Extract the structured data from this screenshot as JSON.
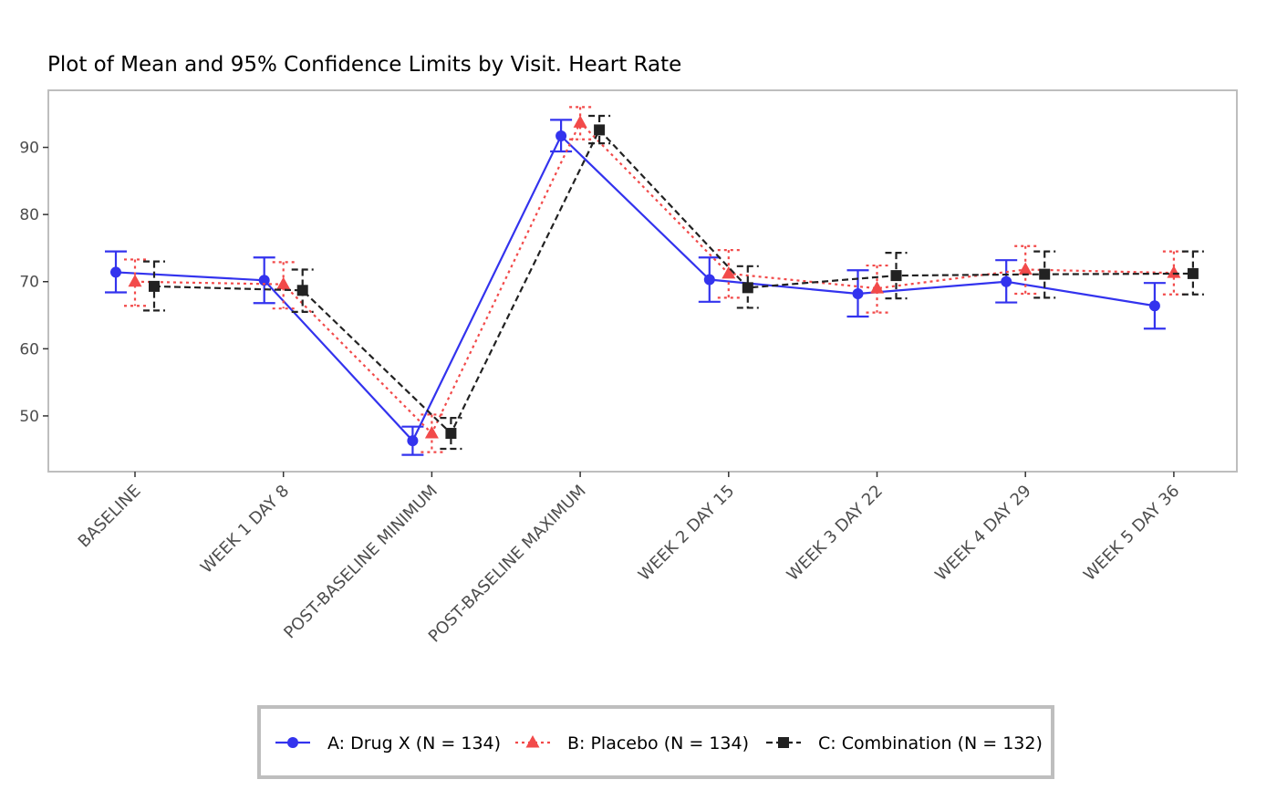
{
  "chart_data": {
    "type": "line",
    "title": "Plot of Mean and 95% Confidence Limits by Visit. Heart Rate",
    "xlabel": "",
    "ylabel": "",
    "ylim": [
      41.7,
      98.5
    ],
    "yticks": [
      50,
      60,
      70,
      80,
      90
    ],
    "grid": false,
    "legend_position": "bottom",
    "categories": [
      "BASELINE",
      "WEEK 1 DAY 8",
      "POST-BASELINE MINIMUM",
      "POST-BASELINE MAXIMUM",
      "WEEK 2 DAY 15",
      "WEEK 3 DAY 22",
      "WEEK 4 DAY 29",
      "WEEK 5 DAY 36"
    ],
    "series": [
      {
        "name": "A: Drug X (N = 134)",
        "color": "#3333ee",
        "line_style": "solid",
        "marker": "circle",
        "values": [
          71.4,
          70.2,
          46.3,
          91.7,
          70.3,
          68.2,
          70.0,
          66.4
        ],
        "ci_lower": [
          68.4,
          66.8,
          44.2,
          89.4,
          67.0,
          64.8,
          66.9,
          63.0
        ],
        "ci_upper": [
          74.5,
          73.6,
          48.4,
          94.1,
          73.6,
          71.7,
          73.2,
          69.8
        ]
      },
      {
        "name": "B: Placebo (N = 134)",
        "color": "#f24a4a",
        "line_style": "dotted",
        "marker": "triangle",
        "values": [
          70.0,
          69.6,
          47.4,
          93.7,
          71.2,
          69.0,
          71.8,
          71.3
        ],
        "ci_lower": [
          66.4,
          66.0,
          44.6,
          91.2,
          67.6,
          65.4,
          68.2,
          68.1
        ],
        "ci_upper": [
          73.3,
          72.9,
          50.2,
          96.0,
          74.7,
          72.4,
          75.3,
          74.5
        ]
      },
      {
        "name": "C: Combination (N = 132)",
        "color": "#222222",
        "line_style": "dashed",
        "marker": "square",
        "values": [
          69.3,
          68.7,
          47.4,
          92.6,
          69.1,
          70.9,
          71.1,
          71.2
        ],
        "ci_lower": [
          65.7,
          65.5,
          45.1,
          90.6,
          66.1,
          67.5,
          67.6,
          68.1
        ],
        "ci_upper": [
          73.0,
          71.8,
          49.7,
          94.7,
          72.3,
          74.3,
          74.5,
          74.5
        ]
      }
    ]
  }
}
